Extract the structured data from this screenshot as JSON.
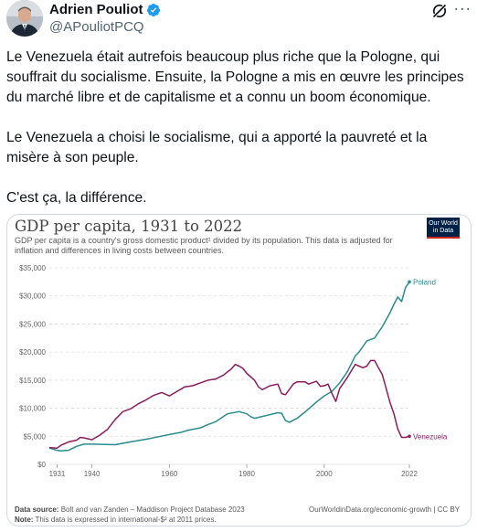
{
  "author": {
    "name": "Adrien Pouliot",
    "handle": "@APouliotPCQ",
    "verified_color": "#1d9bf0",
    "avatar_icon": "avatar-photo"
  },
  "header_icons": [
    "grok-icon",
    "more-icon"
  ],
  "tweet": {
    "paragraphs": [
      "Le Venezuela était autrefois beaucoup plus riche que la Pologne, qui souffrait du socialisme. Ensuite, la Pologne a mis en œuvre les principes du marché libre et de capitalisme et a connu un boom économique.",
      "Le Venezuela a choisi le socialisme, qui a apporté la pauvreté et la misère à son peuple.",
      "C'est ça, la différence."
    ]
  },
  "chart_card": {
    "logo_text": "Our World in Data",
    "logo_colors": {
      "bg": "#002147",
      "accent": "#ce261e"
    },
    "source_label": "Data source:",
    "source_text": "Bolt and van Zanden – Maddison Project Database 2023",
    "source_right": "OurWorldinData.org/economic-growth | CC BY",
    "note_label": "Note:",
    "note_text": "This data is expressed in international-$² at 2011 prices."
  },
  "chart_data": {
    "type": "line",
    "title": "GDP per capita, 1931 to 2022",
    "subtitle": "GDP per capita is a country's gross domestic product¹ divided by its population. This data is adjusted for inflation and differences in living costs between countries.",
    "xlabel": "",
    "ylabel": "",
    "xlim": [
      1931,
      2022
    ],
    "ylim": [
      0,
      35000
    ],
    "x_ticks": [
      1931,
      1940,
      1960,
      1980,
      2000,
      2022
    ],
    "y_ticks": [
      0,
      5000,
      10000,
      15000,
      20000,
      25000,
      30000,
      35000
    ],
    "y_tick_labels": [
      "$0",
      "$5,000",
      "$10,000",
      "$15,000",
      "$20,000",
      "$25,000",
      "$30,000",
      "$35,000"
    ],
    "grid": true,
    "series": [
      {
        "name": "Poland",
        "color": "#2a8c8c",
        "points": [
          [
            1929,
            2900
          ],
          [
            1931,
            2500
          ],
          [
            1932,
            2400
          ],
          [
            1934,
            2500
          ],
          [
            1936,
            3200
          ],
          [
            1938,
            3600
          ],
          [
            1940,
            3600
          ],
          [
            1946,
            3500
          ],
          [
            1950,
            4000
          ],
          [
            1955,
            4600
          ],
          [
            1960,
            5300
          ],
          [
            1963,
            5700
          ],
          [
            1965,
            6100
          ],
          [
            1968,
            6500
          ],
          [
            1970,
            7100
          ],
          [
            1972,
            7600
          ],
          [
            1975,
            9000
          ],
          [
            1978,
            9400
          ],
          [
            1980,
            9000
          ],
          [
            1981,
            8500
          ],
          [
            1982,
            8200
          ],
          [
            1985,
            8700
          ],
          [
            1988,
            9200
          ],
          [
            1989,
            9100
          ],
          [
            1990,
            7800
          ],
          [
            1991,
            7500
          ],
          [
            1993,
            8200
          ],
          [
            1995,
            9300
          ],
          [
            1998,
            11100
          ],
          [
            2000,
            12200
          ],
          [
            2002,
            13000
          ],
          [
            2004,
            14500
          ],
          [
            2006,
            16500
          ],
          [
            2008,
            19300
          ],
          [
            2009,
            20000
          ],
          [
            2010,
            21000
          ],
          [
            2011,
            22000
          ],
          [
            2013,
            22500
          ],
          [
            2015,
            24500
          ],
          [
            2017,
            27000
          ],
          [
            2018,
            28500
          ],
          [
            2019,
            29800
          ],
          [
            2020,
            29000
          ],
          [
            2021,
            31500
          ],
          [
            2022,
            32500
          ]
        ]
      },
      {
        "name": "Venezuela",
        "color": "#8c1c5e",
        "points": [
          [
            1929,
            3000
          ],
          [
            1931,
            2900
          ],
          [
            1932,
            3400
          ],
          [
            1934,
            4000
          ],
          [
            1936,
            4300
          ],
          [
            1937,
            4800
          ],
          [
            1938,
            4700
          ],
          [
            1940,
            4400
          ],
          [
            1942,
            5200
          ],
          [
            1944,
            6200
          ],
          [
            1946,
            8000
          ],
          [
            1948,
            9400
          ],
          [
            1950,
            9900
          ],
          [
            1952,
            10800
          ],
          [
            1954,
            11500
          ],
          [
            1956,
            12300
          ],
          [
            1958,
            12800
          ],
          [
            1960,
            12200
          ],
          [
            1962,
            13000
          ],
          [
            1964,
            13800
          ],
          [
            1966,
            14000
          ],
          [
            1968,
            14500
          ],
          [
            1970,
            15000
          ],
          [
            1972,
            15200
          ],
          [
            1974,
            15900
          ],
          [
            1976,
            17000
          ],
          [
            1977,
            17800
          ],
          [
            1978,
            17500
          ],
          [
            1979,
            17100
          ],
          [
            1980,
            16200
          ],
          [
            1982,
            15000
          ],
          [
            1983,
            13800
          ],
          [
            1984,
            13300
          ],
          [
            1986,
            14000
          ],
          [
            1988,
            14300
          ],
          [
            1989,
            12600
          ],
          [
            1990,
            12400
          ],
          [
            1992,
            14300
          ],
          [
            1993,
            14700
          ],
          [
            1995,
            14700
          ],
          [
            1996,
            14300
          ],
          [
            1998,
            14800
          ],
          [
            1999,
            13900
          ],
          [
            2000,
            14000
          ],
          [
            2001,
            14300
          ],
          [
            2002,
            12600
          ],
          [
            2003,
            11200
          ],
          [
            2004,
            13500
          ],
          [
            2006,
            15500
          ],
          [
            2008,
            17800
          ],
          [
            2009,
            17500
          ],
          [
            2010,
            17200
          ],
          [
            2011,
            17500
          ],
          [
            2012,
            18500
          ],
          [
            2013,
            18500
          ],
          [
            2014,
            17200
          ],
          [
            2015,
            16000
          ],
          [
            2016,
            13500
          ],
          [
            2017,
            11000
          ],
          [
            2018,
            9000
          ],
          [
            2019,
            6300
          ],
          [
            2020,
            4800
          ],
          [
            2021,
            4800
          ],
          [
            2022,
            5000
          ]
        ]
      }
    ]
  }
}
